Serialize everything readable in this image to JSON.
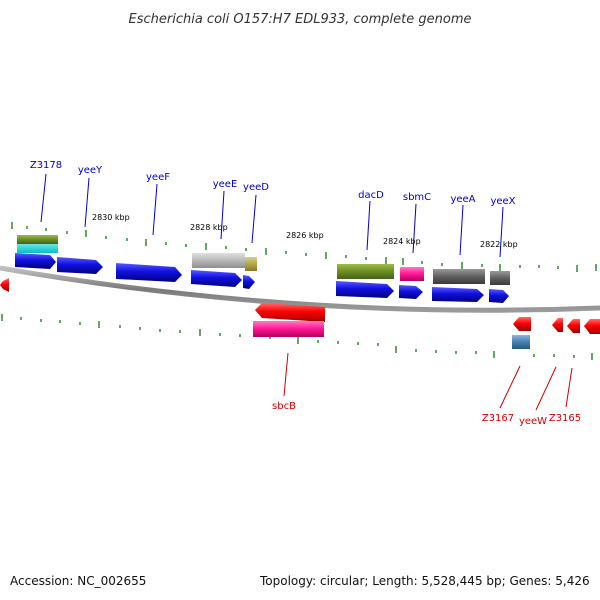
{
  "title": "Escherichia coli O157:H7 EDL933, complete genome",
  "footer": {
    "accession": "Accession: NC_002655",
    "topology": "Topology: circular; Length: 5,528,445 bp; Genes: 5,426"
  },
  "colors": {
    "forward_strand": "#0000cc",
    "reverse_strand": "#cc0000",
    "backbone": "#808080",
    "tick": "#2e8b2e"
  },
  "kbp_labels": [
    "2830 kbp",
    "2828 kbp",
    "2826 kbp",
    "2824 kbp",
    "2822 kbp"
  ],
  "forward_genes": [
    "Z3178",
    "yeeY",
    "yeeF",
    "yeeE",
    "yeeD",
    "dacD",
    "sbmC",
    "yeeA",
    "yeeX"
  ],
  "reverse_genes": [
    "sbcB",
    "Z3167",
    "yeeW",
    "Z3165"
  ]
}
